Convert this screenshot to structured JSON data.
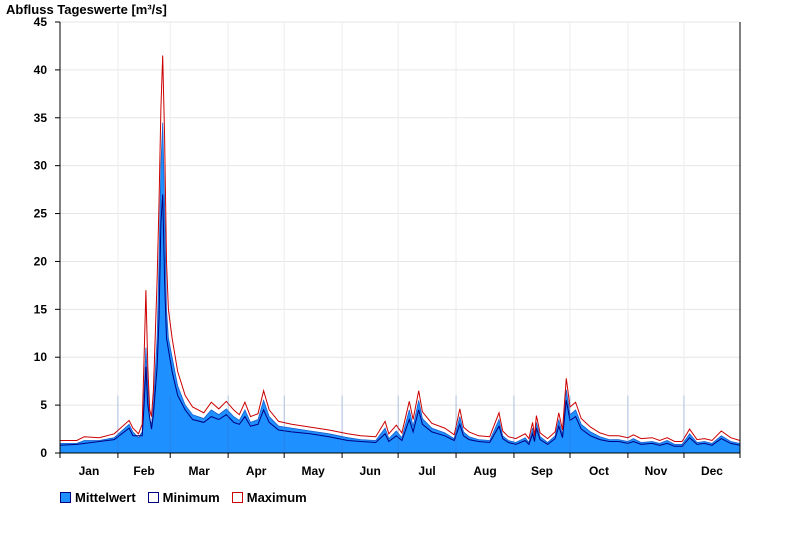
{
  "chart_data": {
    "type": "area",
    "title": "Abfluss Tageswerte [m³/s]",
    "xlabel": "",
    "ylabel": "",
    "ylim": [
      0,
      45
    ],
    "yticks": [
      0,
      5,
      10,
      15,
      20,
      25,
      30,
      35,
      40,
      45
    ],
    "xticks": [
      "Jan",
      "Feb",
      "Mar",
      "Apr",
      "May",
      "Jun",
      "Jul",
      "Aug",
      "Sep",
      "Oct",
      "Nov",
      "Dec"
    ],
    "x_unit": "day of year (1–365)",
    "grid": true,
    "legend_position": "bottom-left",
    "series": [
      {
        "name": "Mittelwert",
        "style": "filled-area",
        "color": "#1e90ff",
        "points": [
          [
            1,
            1.0
          ],
          [
            10,
            1.0
          ],
          [
            14,
            1.3
          ],
          [
            22,
            1.3
          ],
          [
            30,
            1.6
          ],
          [
            38,
            3.0
          ],
          [
            40,
            2.2
          ],
          [
            43,
            1.6
          ],
          [
            45,
            2.2
          ],
          [
            46,
            6.5
          ],
          [
            47,
            11.0
          ],
          [
            48,
            7.0
          ],
          [
            49,
            3.5
          ],
          [
            50,
            3.0
          ],
          [
            51,
            5.0
          ],
          [
            53,
            12.0
          ],
          [
            54,
            20.0
          ],
          [
            55,
            30.0
          ],
          [
            56,
            34.5
          ],
          [
            57,
            26.0
          ],
          [
            58,
            15.0
          ],
          [
            59,
            12.0
          ],
          [
            61,
            10.0
          ],
          [
            64,
            7.0
          ],
          [
            68,
            5.0
          ],
          [
            72,
            4.0
          ],
          [
            78,
            3.6
          ],
          [
            82,
            4.5
          ],
          [
            86,
            4.0
          ],
          [
            90,
            4.6
          ],
          [
            94,
            3.8
          ],
          [
            97,
            3.4
          ],
          [
            100,
            4.5
          ],
          [
            103,
            3.2
          ],
          [
            107,
            3.5
          ],
          [
            110,
            5.5
          ],
          [
            113,
            3.8
          ],
          [
            118,
            2.8
          ],
          [
            125,
            2.6
          ],
          [
            135,
            2.3
          ],
          [
            145,
            2.0
          ],
          [
            155,
            1.6
          ],
          [
            162,
            1.4
          ],
          [
            170,
            1.3
          ],
          [
            175,
            2.6
          ],
          [
            177,
            1.5
          ],
          [
            181,
            2.3
          ],
          [
            184,
            1.6
          ],
          [
            188,
            4.5
          ],
          [
            190,
            2.8
          ],
          [
            193,
            5.5
          ],
          [
            195,
            3.6
          ],
          [
            200,
            2.6
          ],
          [
            207,
            2.1
          ],
          [
            212,
            1.5
          ],
          [
            215,
            3.8
          ],
          [
            217,
            2.2
          ],
          [
            220,
            1.7
          ],
          [
            225,
            1.4
          ],
          [
            231,
            1.3
          ],
          [
            236,
            3.5
          ],
          [
            238,
            1.8
          ],
          [
            241,
            1.3
          ],
          [
            245,
            1.1
          ],
          [
            250,
            1.6
          ],
          [
            252,
            1.1
          ],
          [
            254,
            2.6
          ],
          [
            255,
            1.4
          ],
          [
            256,
            3.2
          ],
          [
            258,
            1.7
          ],
          [
            262,
            1.1
          ],
          [
            266,
            1.8
          ],
          [
            268,
            3.5
          ],
          [
            270,
            1.9
          ],
          [
            272,
            6.6
          ],
          [
            274,
            4.0
          ],
          [
            277,
            4.5
          ],
          [
            280,
            3.0
          ],
          [
            285,
            2.2
          ],
          [
            290,
            1.7
          ],
          [
            295,
            1.4
          ],
          [
            300,
            1.4
          ],
          [
            305,
            1.2
          ],
          [
            308,
            1.5
          ],
          [
            312,
            1.1
          ],
          [
            318,
            1.2
          ],
          [
            322,
            1.0
          ],
          [
            326,
            1.3
          ],
          [
            330,
            0.9
          ],
          [
            334,
            0.9
          ],
          [
            338,
            2.0
          ],
          [
            342,
            1.1
          ],
          [
            346,
            1.2
          ],
          [
            350,
            1.0
          ],
          [
            355,
            1.8
          ],
          [
            360,
            1.2
          ],
          [
            365,
            1.0
          ]
        ]
      },
      {
        "name": "Minimum",
        "style": "line",
        "color": "#000080",
        "points": [
          [
            1,
            0.8
          ],
          [
            10,
            0.9
          ],
          [
            22,
            1.2
          ],
          [
            30,
            1.4
          ],
          [
            38,
            2.6
          ],
          [
            40,
            1.8
          ],
          [
            45,
            1.8
          ],
          [
            46,
            5.0
          ],
          [
            47,
            9.0
          ],
          [
            48,
            5.0
          ],
          [
            50,
            2.5
          ],
          [
            51,
            4.0
          ],
          [
            53,
            9.0
          ],
          [
            54,
            14.0
          ],
          [
            55,
            24.0
          ],
          [
            56,
            27.0
          ],
          [
            57,
            18.0
          ],
          [
            58,
            12.0
          ],
          [
            61,
            8.5
          ],
          [
            64,
            6.0
          ],
          [
            68,
            4.5
          ],
          [
            72,
            3.5
          ],
          [
            78,
            3.2
          ],
          [
            82,
            3.8
          ],
          [
            86,
            3.5
          ],
          [
            90,
            4.0
          ],
          [
            94,
            3.2
          ],
          [
            97,
            3.0
          ],
          [
            100,
            3.8
          ],
          [
            103,
            2.8
          ],
          [
            107,
            3.0
          ],
          [
            110,
            4.5
          ],
          [
            113,
            3.2
          ],
          [
            118,
            2.4
          ],
          [
            125,
            2.2
          ],
          [
            135,
            2.0
          ],
          [
            145,
            1.7
          ],
          [
            155,
            1.3
          ],
          [
            162,
            1.2
          ],
          [
            170,
            1.1
          ],
          [
            175,
            2.0
          ],
          [
            177,
            1.2
          ],
          [
            181,
            1.8
          ],
          [
            184,
            1.3
          ],
          [
            188,
            3.5
          ],
          [
            190,
            2.2
          ],
          [
            193,
            4.5
          ],
          [
            195,
            3.0
          ],
          [
            200,
            2.2
          ],
          [
            207,
            1.8
          ],
          [
            212,
            1.3
          ],
          [
            215,
            3.0
          ],
          [
            217,
            1.8
          ],
          [
            220,
            1.4
          ],
          [
            225,
            1.2
          ],
          [
            231,
            1.1
          ],
          [
            236,
            2.8
          ],
          [
            238,
            1.5
          ],
          [
            241,
            1.1
          ],
          [
            245,
            0.9
          ],
          [
            250,
            1.3
          ],
          [
            252,
            0.9
          ],
          [
            254,
            2.0
          ],
          [
            255,
            1.2
          ],
          [
            256,
            2.6
          ],
          [
            258,
            1.4
          ],
          [
            262,
            0.9
          ],
          [
            266,
            1.5
          ],
          [
            268,
            2.8
          ],
          [
            270,
            1.6
          ],
          [
            272,
            5.5
          ],
          [
            274,
            3.4
          ],
          [
            277,
            3.8
          ],
          [
            280,
            2.5
          ],
          [
            285,
            1.8
          ],
          [
            290,
            1.4
          ],
          [
            295,
            1.2
          ],
          [
            300,
            1.2
          ],
          [
            305,
            1.0
          ],
          [
            308,
            1.2
          ],
          [
            312,
            0.9
          ],
          [
            318,
            1.0
          ],
          [
            322,
            0.8
          ],
          [
            326,
            1.0
          ],
          [
            330,
            0.7
          ],
          [
            334,
            0.7
          ],
          [
            338,
            1.6
          ],
          [
            342,
            0.9
          ],
          [
            346,
            1.0
          ],
          [
            350,
            0.8
          ],
          [
            355,
            1.5
          ],
          [
            360,
            1.0
          ],
          [
            365,
            0.8
          ]
        ]
      },
      {
        "name": "Maximum",
        "style": "line",
        "color": "#cc0000",
        "points": [
          [
            1,
            1.3
          ],
          [
            10,
            1.3
          ],
          [
            14,
            1.7
          ],
          [
            22,
            1.6
          ],
          [
            30,
            2.0
          ],
          [
            38,
            3.4
          ],
          [
            40,
            2.6
          ],
          [
            43,
            2.0
          ],
          [
            45,
            3.0
          ],
          [
            46,
            10.0
          ],
          [
            47,
            17.0
          ],
          [
            48,
            9.0
          ],
          [
            49,
            4.5
          ],
          [
            50,
            3.8
          ],
          [
            51,
            6.5
          ],
          [
            53,
            18.0
          ],
          [
            54,
            26.0
          ],
          [
            55,
            36.0
          ],
          [
            56,
            41.5
          ],
          [
            57,
            33.0
          ],
          [
            58,
            20.0
          ],
          [
            59,
            15.0
          ],
          [
            61,
            12.0
          ],
          [
            64,
            8.5
          ],
          [
            68,
            6.0
          ],
          [
            72,
            4.8
          ],
          [
            78,
            4.2
          ],
          [
            82,
            5.3
          ],
          [
            86,
            4.6
          ],
          [
            90,
            5.4
          ],
          [
            94,
            4.5
          ],
          [
            97,
            4.0
          ],
          [
            100,
            5.3
          ],
          [
            103,
            3.8
          ],
          [
            107,
            4.1
          ],
          [
            110,
            6.5
          ],
          [
            113,
            4.5
          ],
          [
            118,
            3.3
          ],
          [
            125,
            3.0
          ],
          [
            135,
            2.7
          ],
          [
            145,
            2.4
          ],
          [
            155,
            2.0
          ],
          [
            162,
            1.8
          ],
          [
            170,
            1.7
          ],
          [
            175,
            3.3
          ],
          [
            177,
            2.0
          ],
          [
            181,
            2.9
          ],
          [
            184,
            2.1
          ],
          [
            188,
            5.4
          ],
          [
            190,
            3.5
          ],
          [
            193,
            6.5
          ],
          [
            195,
            4.3
          ],
          [
            200,
            3.1
          ],
          [
            207,
            2.6
          ],
          [
            212,
            1.9
          ],
          [
            215,
            4.6
          ],
          [
            217,
            2.7
          ],
          [
            220,
            2.2
          ],
          [
            225,
            1.8
          ],
          [
            231,
            1.7
          ],
          [
            236,
            4.2
          ],
          [
            238,
            2.3
          ],
          [
            241,
            1.7
          ],
          [
            245,
            1.5
          ],
          [
            250,
            2.0
          ],
          [
            252,
            1.5
          ],
          [
            254,
            3.2
          ],
          [
            255,
            1.8
          ],
          [
            256,
            3.9
          ],
          [
            258,
            2.1
          ],
          [
            262,
            1.5
          ],
          [
            266,
            2.2
          ],
          [
            268,
            4.2
          ],
          [
            270,
            2.4
          ],
          [
            272,
            7.8
          ],
          [
            274,
            4.8
          ],
          [
            277,
            5.3
          ],
          [
            280,
            3.6
          ],
          [
            285,
            2.7
          ],
          [
            290,
            2.1
          ],
          [
            295,
            1.8
          ],
          [
            300,
            1.8
          ],
          [
            305,
            1.6
          ],
          [
            308,
            1.9
          ],
          [
            312,
            1.5
          ],
          [
            318,
            1.6
          ],
          [
            322,
            1.3
          ],
          [
            326,
            1.6
          ],
          [
            330,
            1.2
          ],
          [
            334,
            1.2
          ],
          [
            338,
            2.5
          ],
          [
            342,
            1.4
          ],
          [
            346,
            1.5
          ],
          [
            350,
            1.3
          ],
          [
            355,
            2.3
          ],
          [
            360,
            1.6
          ],
          [
            365,
            1.3
          ]
        ]
      }
    ]
  }
}
